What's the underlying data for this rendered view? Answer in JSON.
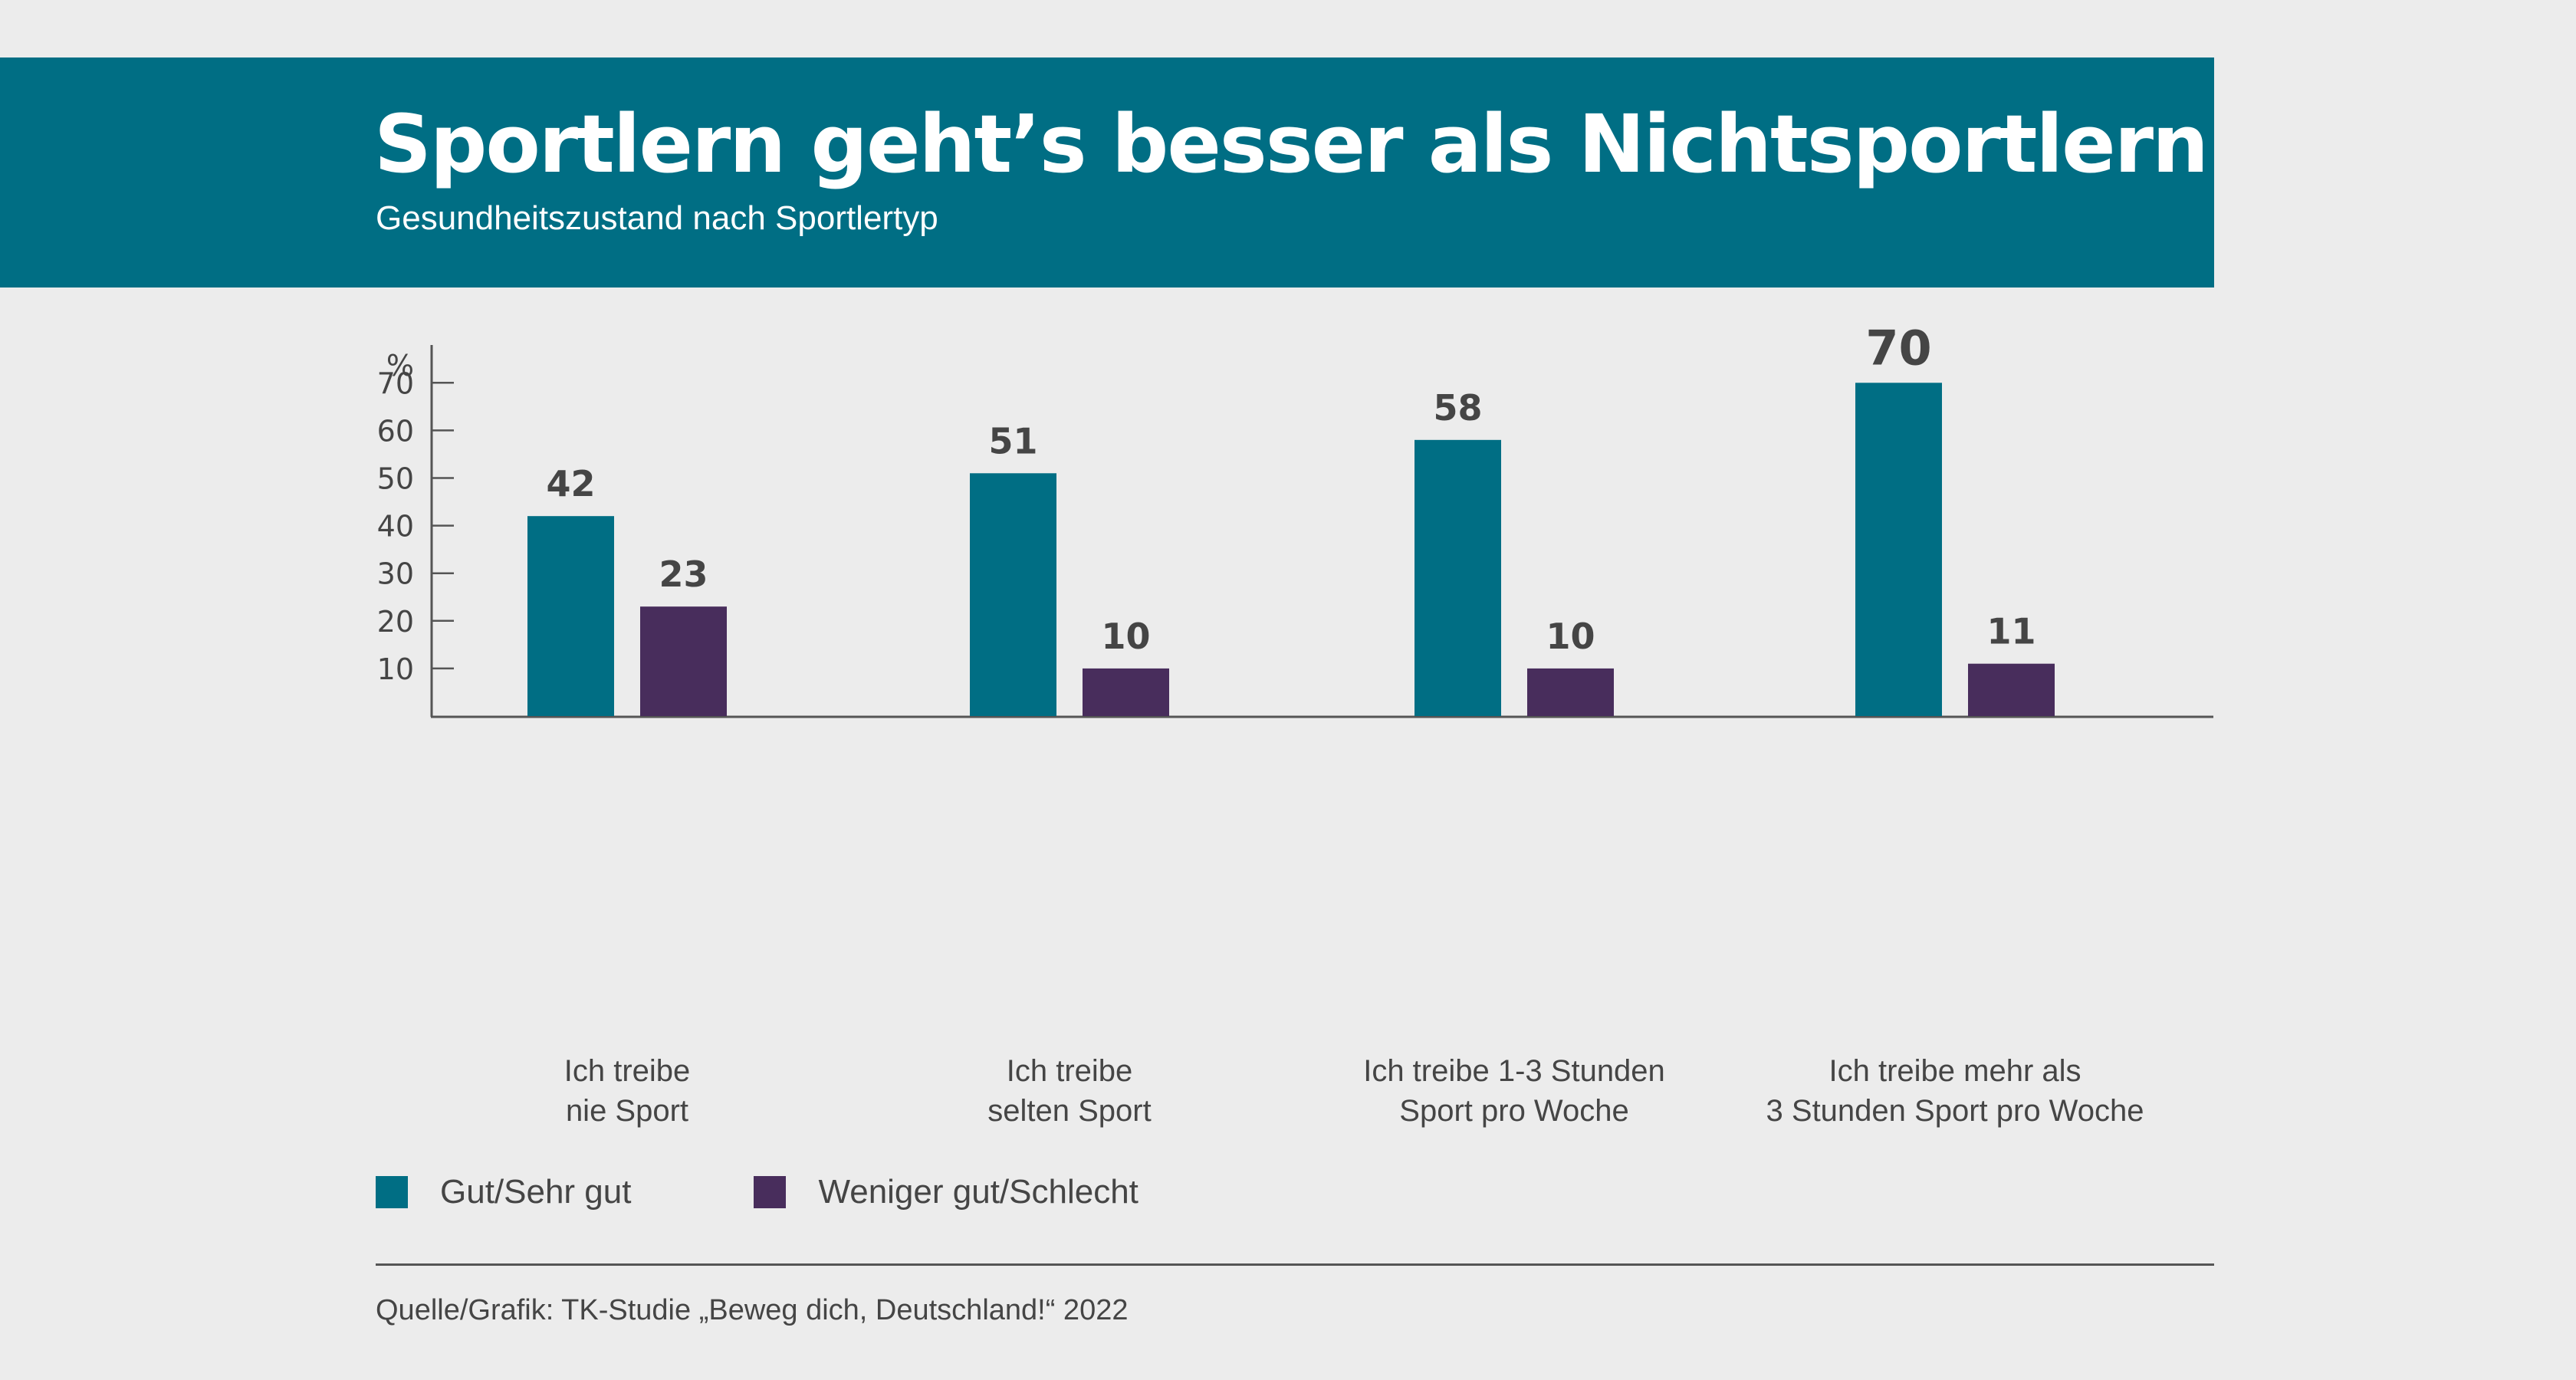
{
  "header": {
    "title": "Sportlern geht’s besser als Nichtsportlern",
    "subtitle": "Gesundheitszustand nach Sportlertyp"
  },
  "colors": {
    "series1": "#006e84",
    "series2": "#482d5c",
    "header_bg": "#006e84",
    "text": "#454545",
    "background": "#ececec"
  },
  "chart_data": {
    "type": "bar",
    "title": "Sportlern geht’s besser als Nichtsportlern",
    "subtitle": "Gesundheitszustand nach Sportlertyp",
    "ylabel": "%",
    "xlabel": "",
    "ylim": [
      0,
      70
    ],
    "yticks": [
      10,
      20,
      30,
      40,
      50,
      60,
      70
    ],
    "grid": false,
    "legend_position": "bottom-left",
    "categories": [
      [
        "Ich treibe",
        "nie Sport"
      ],
      [
        "Ich treibe",
        "selten Sport"
      ],
      [
        "Ich treibe 1-3 Stunden",
        "Sport pro Woche"
      ],
      [
        "Ich treibe mehr als",
        "3 Stunden Sport pro Woche"
      ]
    ],
    "series": [
      {
        "name": "Gut/Sehr gut",
        "color": "#006e84",
        "values": [
          42,
          51,
          58,
          70
        ]
      },
      {
        "name": "Weniger gut/Schlecht",
        "color": "#482d5c",
        "values": [
          23,
          10,
          10,
          11
        ]
      }
    ],
    "highlight_label_index": 3
  },
  "legend": [
    {
      "label": "Gut/Sehr gut",
      "color": "#006e84"
    },
    {
      "label": "Weniger gut/Schlecht",
      "color": "#482d5c"
    }
  ],
  "footer": {
    "source": "Quelle/Grafik: TK-Studie „Beweg dich, Deutschland!“ 2022"
  }
}
